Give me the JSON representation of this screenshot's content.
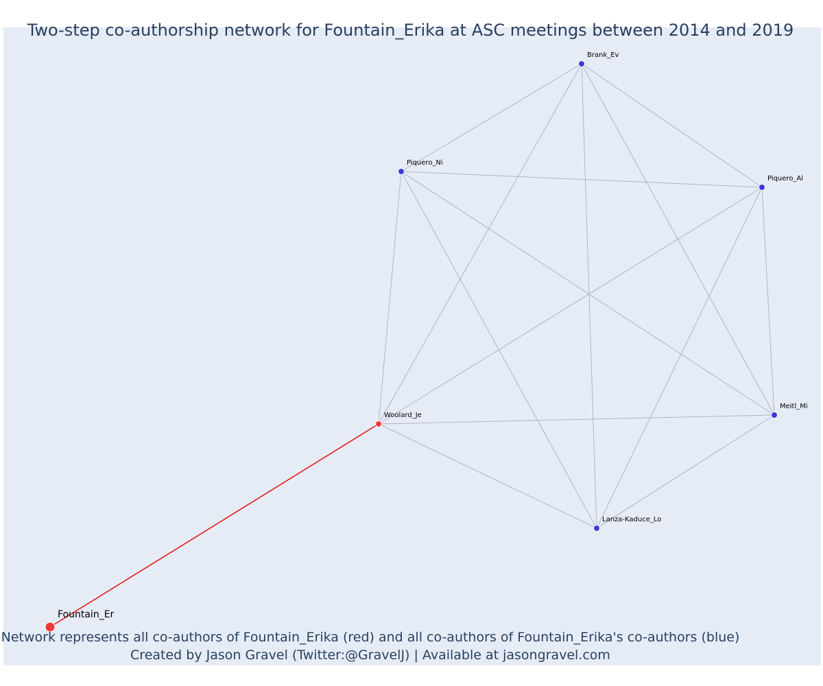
{
  "title": "Two-step co-authorship network for Fountain_Erika at ASC meetings between 2014 and 2019",
  "footer": {
    "line1": "Network represents all co-authors of Fountain_Erika (red) and all co-authors of Fountain_Erika's co-authors (blue)",
    "line2": "Created by Jason Gravel (Twitter:@GravelJ) | Available at jasongravel.com"
  },
  "colors": {
    "background": "#e5ecf6",
    "focal": "#ef3b3b",
    "coauthor": "#3b3bdc",
    "edge": "#b0b4c4",
    "focal_edge": "#e8191b"
  },
  "nodes": [
    {
      "id": "brank",
      "label": "Brank_Ev",
      "group": "second-step"
    },
    {
      "id": "piquero_ni",
      "label": "Piquero_Ni",
      "group": "second-step"
    },
    {
      "id": "piquero_al",
      "label": "Piquero_Al",
      "group": "second-step"
    },
    {
      "id": "woolard",
      "label": "Woolard_Je",
      "group": "co-author"
    },
    {
      "id": "meitl",
      "label": "Meitl_Mi",
      "group": "second-step"
    },
    {
      "id": "lanza",
      "label": "Lanza-Kaduce_Lo",
      "group": "second-step"
    },
    {
      "id": "fountain",
      "label": "Fountain_Er",
      "group": "focal"
    }
  ],
  "edges": [
    [
      "brank",
      "piquero_ni"
    ],
    [
      "brank",
      "piquero_al"
    ],
    [
      "brank",
      "woolard"
    ],
    [
      "brank",
      "meitl"
    ],
    [
      "brank",
      "lanza"
    ],
    [
      "piquero_ni",
      "piquero_al"
    ],
    [
      "piquero_ni",
      "woolard"
    ],
    [
      "piquero_ni",
      "meitl"
    ],
    [
      "piquero_ni",
      "lanza"
    ],
    [
      "piquero_al",
      "woolard"
    ],
    [
      "piquero_al",
      "meitl"
    ],
    [
      "piquero_al",
      "lanza"
    ],
    [
      "woolard",
      "meitl"
    ],
    [
      "woolard",
      "lanza"
    ],
    [
      "meitl",
      "lanza"
    ],
    [
      "woolard",
      "fountain",
      "focal"
    ]
  ]
}
